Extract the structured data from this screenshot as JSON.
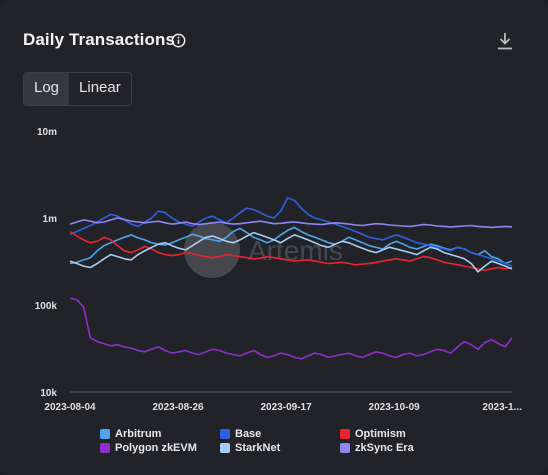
{
  "header": {
    "title": "Daily Transactions",
    "info_icon": "info-circle-icon",
    "download_icon": "download-icon"
  },
  "scale_toggle": {
    "options": [
      "Log",
      "Linear"
    ],
    "selected": "Log"
  },
  "watermark": "Artemis",
  "chart_data": {
    "type": "line",
    "title": "Daily Transactions",
    "xlabel": "",
    "ylabel": "",
    "yscale": "log",
    "ylim": [
      10000,
      10000000
    ],
    "y_ticks": [
      "10k",
      "100k",
      "1m",
      "10m"
    ],
    "x_ticks": [
      "2023-08-04",
      "2023-08-26",
      "2023-09-17",
      "2023-10-09",
      "2023-1..."
    ],
    "grid": false,
    "legend_position": "bottom",
    "x_start": "2023-08-04",
    "x_end": "2023-11-02",
    "series": [
      {
        "name": "Arbitrum",
        "color": "#4ea6e8",
        "values": [
          300000,
          310000,
          330000,
          350000,
          420000,
          480000,
          520000,
          560000,
          600000,
          640000,
          590000,
          560000,
          520000,
          500000,
          490000,
          520000,
          560000,
          600000,
          650000,
          620000,
          580000,
          560000,
          540000,
          600000,
          700000,
          760000,
          680000,
          600000,
          560000,
          520000,
          560000,
          640000,
          720000,
          780000,
          700000,
          640000,
          600000,
          560000,
          520000,
          500000,
          540000,
          600000,
          560000,
          520000,
          480000,
          460000,
          440000,
          500000,
          540000,
          500000,
          460000,
          440000,
          470000,
          500000,
          480000,
          450000,
          430000,
          460000,
          440000,
          400000,
          380000,
          420000,
          360000,
          340000,
          300000,
          320000
        ]
      },
      {
        "name": "Base",
        "color": "#2f5fe0",
        "values": [
          650000,
          700000,
          760000,
          820000,
          900000,
          1000000,
          1100000,
          1050000,
          950000,
          850000,
          800000,
          900000,
          1000000,
          1200000,
          1150000,
          1000000,
          900000,
          850000,
          800000,
          900000,
          1000000,
          1050000,
          950000,
          880000,
          1000000,
          1150000,
          1300000,
          1250000,
          1150000,
          1050000,
          1000000,
          1200000,
          1700000,
          1600000,
          1300000,
          1100000,
          1000000,
          950000,
          900000,
          850000,
          800000,
          750000,
          700000,
          650000,
          600000,
          580000,
          560000,
          600000,
          640000,
          600000,
          560000,
          520000,
          500000,
          480000,
          460000,
          440000,
          420000,
          460000,
          440000,
          400000,
          380000,
          360000,
          340000,
          320000,
          300000,
          280000
        ]
      },
      {
        "name": "Optimism",
        "color": "#e8252e",
        "values": [
          700000,
          620000,
          560000,
          520000,
          540000,
          600000,
          560000,
          480000,
          420000,
          400000,
          430000,
          470000,
          440000,
          400000,
          380000,
          370000,
          380000,
          400000,
          390000,
          370000,
          360000,
          350000,
          360000,
          380000,
          370000,
          360000,
          350000,
          340000,
          345000,
          360000,
          350000,
          340000,
          330000,
          320000,
          325000,
          330000,
          320000,
          310000,
          300000,
          305000,
          310000,
          300000,
          290000,
          295000,
          300000,
          310000,
          320000,
          330000,
          340000,
          330000,
          320000,
          340000,
          360000,
          350000,
          330000,
          310000,
          300000,
          290000,
          280000,
          270000,
          260000,
          250000,
          260000,
          270000,
          260000,
          270000
        ]
      },
      {
        "name": "Polygon zkEVM",
        "color": "#8e2fc9",
        "values": [
          120000,
          115000,
          95000,
          42000,
          38000,
          36000,
          34000,
          35000,
          33000,
          32000,
          30000,
          29000,
          31000,
          33000,
          30000,
          28000,
          29000,
          30000,
          28000,
          27000,
          29000,
          31000,
          30000,
          28000,
          27000,
          26000,
          28000,
          30000,
          27000,
          25000,
          26000,
          28000,
          27000,
          25000,
          24000,
          26000,
          28000,
          27000,
          25000,
          26000,
          27000,
          28000,
          26000,
          25000,
          27000,
          29000,
          28000,
          26000,
          25000,
          27000,
          28000,
          26000,
          27000,
          29000,
          31000,
          30000,
          28000,
          33000,
          38000,
          35000,
          31000,
          37000,
          40000,
          36000,
          33000,
          42000
        ]
      },
      {
        "name": "StarkNet",
        "color": "#a8cdf5",
        "values": [
          320000,
          300000,
          280000,
          270000,
          300000,
          340000,
          380000,
          360000,
          340000,
          330000,
          380000,
          420000,
          460000,
          500000,
          520000,
          480000,
          450000,
          430000,
          480000,
          540000,
          600000,
          620000,
          580000,
          540000,
          520000,
          560000,
          620000,
          680000,
          640000,
          600000,
          560000,
          520000,
          580000,
          640000,
          600000,
          560000,
          520000,
          480000,
          460000,
          500000,
          540000,
          520000,
          480000,
          450000,
          420000,
          400000,
          430000,
          460000,
          440000,
          420000,
          400000,
          380000,
          420000,
          460000,
          440000,
          400000,
          380000,
          360000,
          340000,
          300000,
          240000,
          280000,
          320000,
          300000,
          280000,
          260000
        ]
      },
      {
        "name": "zkSync Era",
        "color": "#8f86f0",
        "values": [
          850000,
          900000,
          950000,
          920000,
          880000,
          900000,
          950000,
          1000000,
          960000,
          920000,
          900000,
          880000,
          900000,
          920000,
          880000,
          850000,
          870000,
          900000,
          860000,
          840000,
          860000,
          880000,
          900000,
          870000,
          850000,
          860000,
          880000,
          900000,
          920000,
          890000,
          860000,
          870000,
          890000,
          900000,
          880000,
          860000,
          850000,
          840000,
          860000,
          880000,
          870000,
          850000,
          830000,
          820000,
          840000,
          860000,
          850000,
          830000,
          820000,
          810000,
          800000,
          820000,
          840000,
          830000,
          810000,
          800000,
          790000,
          800000,
          810000,
          820000,
          800000,
          790000,
          780000,
          790000,
          800000,
          790000
        ]
      }
    ]
  }
}
